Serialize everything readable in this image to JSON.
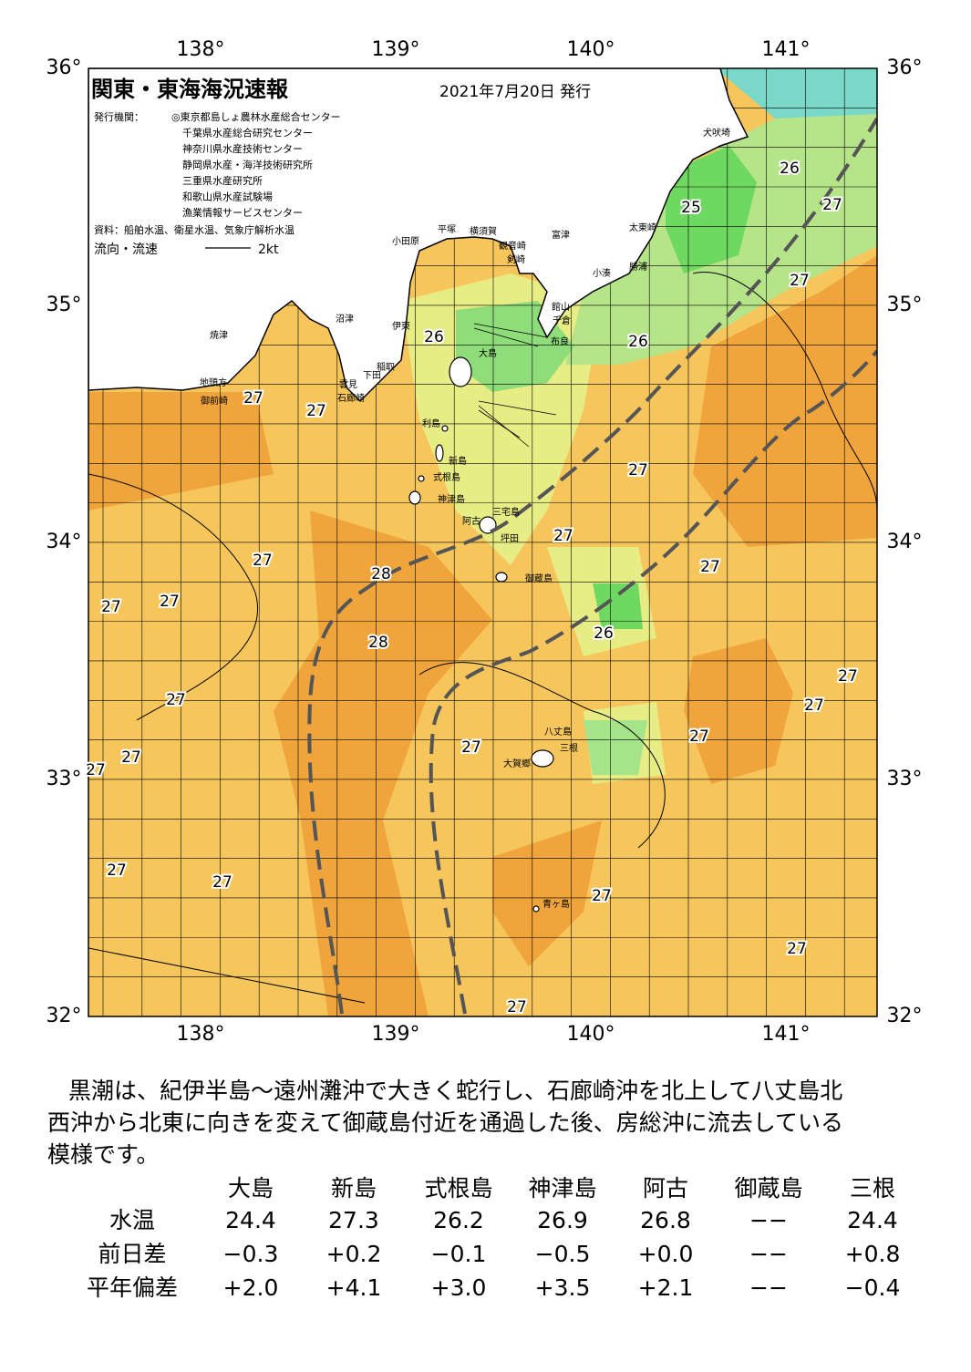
{
  "header": {
    "title": "関東・東海海況速報",
    "date": "2021年7月20日 発行",
    "issuer_label": "発行機関：",
    "issuers": [
      "◎東京都島しょ農林水産総合センター",
      "千葉県水産総合研究センター",
      "神奈川県水産技術センター",
      "静岡県水産・海洋技術研究所",
      "三重県水産研究所",
      "和歌山県水産試験場",
      "漁業情報サービスセンター"
    ],
    "sources": "資料：船舶水温、衛星水温、気象庁解析水温",
    "current_label": "流向・流速",
    "current_scale": "2kt"
  },
  "map": {
    "lon_labels": [
      "138°",
      "139°",
      "140°",
      "141°"
    ],
    "lat_labels": [
      "36°",
      "35°",
      "34°",
      "33°",
      "32°"
    ],
    "places": [
      "犬吠埼",
      "太東崎",
      "勝浦",
      "小湊",
      "富津",
      "館山",
      "千倉",
      "布良",
      "観音崎",
      "剣崎",
      "横須賀",
      "平塚",
      "小田原",
      "伊東",
      "稲取",
      "下田",
      "雲見",
      "石廊崎",
      "沼津",
      "焼津",
      "地頭方",
      "御前崎",
      "大島",
      "利島",
      "新島",
      "式根島",
      "神津島",
      "三宅島",
      "阿古",
      "坪田",
      "御蔵島",
      "八丈島",
      "三根",
      "大賀郷",
      "青ヶ島"
    ],
    "temperature_labels": [
      "26",
      "27",
      "25",
      "27",
      "26",
      "26",
      "27",
      "27",
      "27",
      "27",
      "27",
      "28",
      "27",
      "27",
      "27",
      "28",
      "26",
      "27",
      "27",
      "27",
      "27",
      "27",
      "27",
      "27",
      "27",
      "27",
      "27",
      "27",
      "27"
    ]
  },
  "summary": {
    "lines": [
      "黒潮は、紀伊半島～遠州灘沖で大きく蛇行し、石廊崎沖を北上して八丈島北",
      "西沖から北東に向きを変えて御蔵島付近を通過した後、房総沖に流去している",
      "模様です。"
    ]
  },
  "table": {
    "columns": [
      "大島",
      "新島",
      "式根島",
      "神津島",
      "阿古",
      "御蔵島",
      "三根"
    ],
    "rows": [
      [
        "水温",
        "24.4",
        "27.3",
        "26.2",
        "26.9",
        "26.8",
        "−−",
        "24.4"
      ],
      [
        "前日差",
        "−0.3",
        "+0.2",
        "−0.1",
        "−0.5",
        "+0.0",
        "−−",
        "+0.8"
      ],
      [
        "平年偏差",
        "+2.0",
        "+4.1",
        "+3.0",
        "+3.5",
        "+2.1",
        "−−",
        "−0.4"
      ]
    ]
  }
}
